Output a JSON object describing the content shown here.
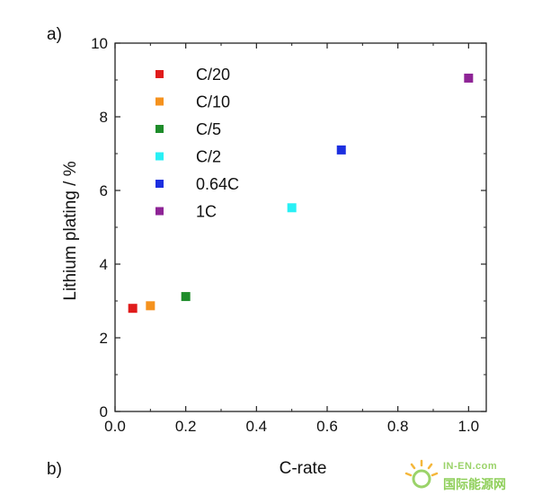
{
  "panel_labels": {
    "a": "a)",
    "b": "b)"
  },
  "watermark": {
    "top": "IN-EN.com",
    "cn": "国际能源网"
  },
  "chart_data": {
    "type": "scatter",
    "title": "",
    "xlabel": "C-rate",
    "ylabel": "Lithium plating / %",
    "xlim": [
      0.0,
      1.05
    ],
    "ylim": [
      0,
      10
    ],
    "xticks": [
      "0.0",
      "0.2",
      "0.4",
      "0.6",
      "0.8",
      "1.0"
    ],
    "xtick_values": [
      0.0,
      0.2,
      0.4,
      0.6,
      0.8,
      1.0
    ],
    "yticks": [
      "0",
      "2",
      "4",
      "6",
      "8",
      "10"
    ],
    "ytick_values": [
      0,
      2,
      4,
      6,
      8,
      10
    ],
    "grid": false,
    "legend_position": "top-left",
    "series": [
      {
        "name": "C/20",
        "color": "#e01b1b",
        "x": [
          0.05
        ],
        "y": [
          2.8
        ]
      },
      {
        "name": "C/10",
        "color": "#f5921e",
        "x": [
          0.1
        ],
        "y": [
          2.87
        ]
      },
      {
        "name": "C/5",
        "color": "#1e8c2a",
        "x": [
          0.2
        ],
        "y": [
          3.12
        ]
      },
      {
        "name": "C/2",
        "color": "#29f0f5",
        "x": [
          0.5
        ],
        "y": [
          5.53
        ]
      },
      {
        "name": "0.64C",
        "color": "#1c2fe0",
        "x": [
          0.64
        ],
        "y": [
          7.1
        ]
      },
      {
        "name": "1C",
        "color": "#8e2496",
        "x": [
          1.0
        ],
        "y": [
          9.05
        ]
      }
    ]
  }
}
